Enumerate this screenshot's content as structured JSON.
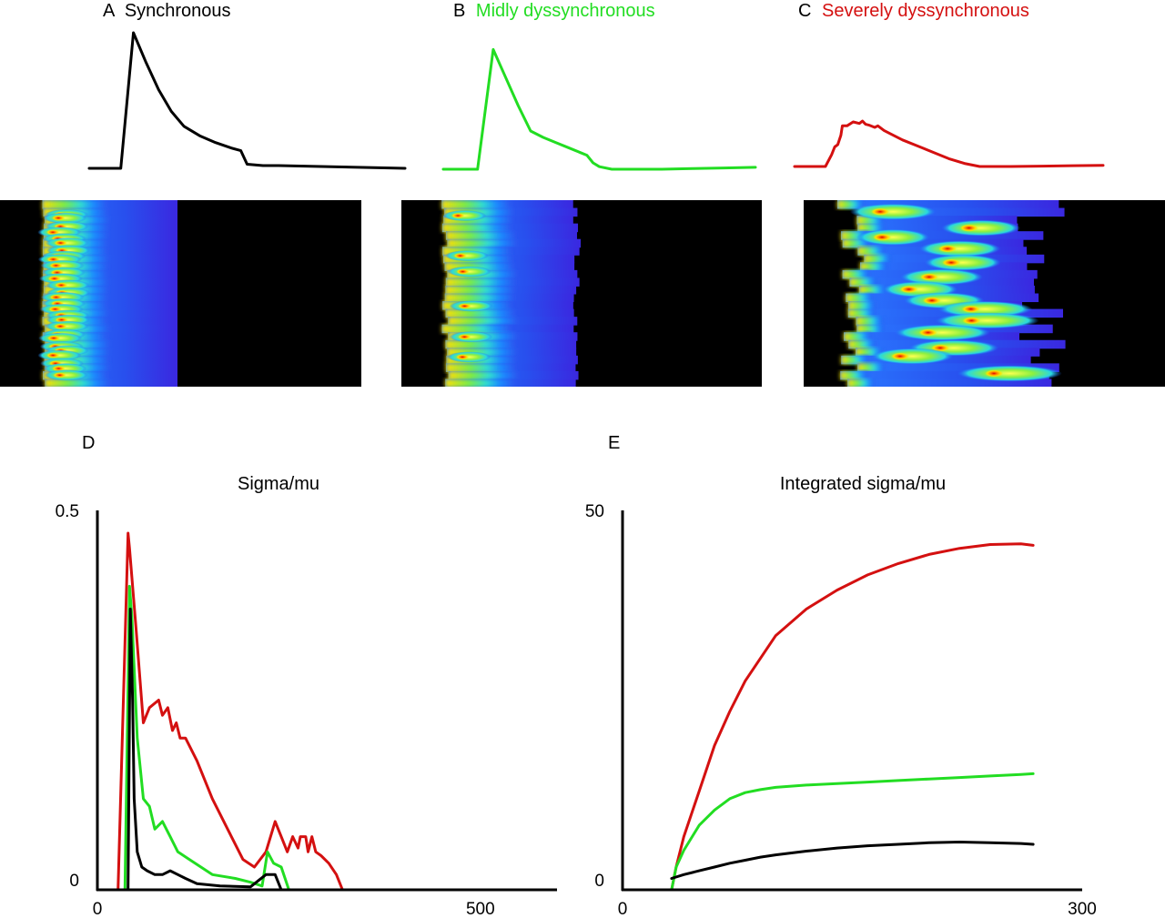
{
  "colors": {
    "synchronous": "#000000",
    "mild": "#22dd22",
    "severe": "#d41010",
    "heatmap_background": "#000000"
  },
  "panels": {
    "a": {
      "letter": "A",
      "title": "Synchronous"
    },
    "b": {
      "letter": "B",
      "title": "Midly dyssynchronous"
    },
    "c": {
      "letter": "C",
      "title": "Severely dyssynchronous"
    },
    "d": {
      "letter": "D",
      "title": "Sigma/mu"
    },
    "e": {
      "letter": "E",
      "title": "Integrated sigma/mu"
    }
  },
  "chart_data": [
    {
      "id": "trace-a",
      "type": "line",
      "panel": "A",
      "title": "Synchronous",
      "color": "#000000",
      "x": [
        0,
        10,
        14,
        18,
        22,
        26,
        30,
        35,
        40,
        45,
        48,
        50,
        55,
        60,
        70,
        80,
        90,
        100
      ],
      "y": [
        0,
        0,
        1.0,
        0.78,
        0.58,
        0.42,
        0.31,
        0.24,
        0.19,
        0.15,
        0.13,
        0.03,
        0.02,
        0.02,
        0.015,
        0.01,
        0.005,
        0.0
      ]
    },
    {
      "id": "trace-b",
      "type": "line",
      "panel": "B",
      "title": "Midly dyssynchronous",
      "color": "#22dd22",
      "x": [
        0,
        11,
        16,
        20,
        24,
        28,
        32,
        36,
        40,
        44,
        46,
        48,
        50,
        54,
        60,
        70,
        80,
        90,
        100
      ],
      "y": [
        0,
        0,
        0.94,
        0.72,
        0.5,
        0.3,
        0.25,
        0.21,
        0.17,
        0.13,
        0.11,
        0.05,
        0.02,
        0.0,
        0.0,
        0.0,
        0.005,
        0.01,
        0.015
      ]
    },
    {
      "id": "trace-c",
      "type": "line",
      "panel": "C",
      "title": "Severely dyssynchronous",
      "color": "#d41010",
      "x": [
        0,
        10,
        12,
        13,
        14,
        15,
        15.5,
        17,
        19,
        21,
        22,
        23,
        24,
        26,
        27,
        29,
        31,
        35,
        40,
        45,
        50,
        55,
        60,
        70,
        80,
        90,
        100
      ],
      "y": [
        0,
        0,
        0.15,
        0.25,
        0.28,
        0.4,
        0.52,
        0.52,
        0.57,
        0.55,
        0.58,
        0.54,
        0.53,
        0.5,
        0.52,
        0.46,
        0.42,
        0.34,
        0.26,
        0.18,
        0.1,
        0.04,
        0.0,
        0.0,
        0.005,
        0.01,
        0.015
      ]
    },
    {
      "id": "heatmap-a",
      "type": "heatmap",
      "panel": "A",
      "colorscale": "jet on black",
      "wavefront_jitter": 0.1,
      "red_foci": 28,
      "red_tail_amplitude": 0.0,
      "blue_tail_extent": 0.37,
      "blue_tail_jitter": 0.0
    },
    {
      "id": "heatmap-b",
      "type": "heatmap",
      "panel": "B",
      "colorscale": "jet on black",
      "wavefront_jitter": 0.25,
      "red_foci": 6,
      "red_tail_amplitude": 0.15,
      "blue_tail_extent": 0.38,
      "blue_tail_jitter": 0.15
    },
    {
      "id": "heatmap-c",
      "type": "heatmap",
      "panel": "C",
      "colorscale": "jet on black",
      "wavefront_jitter": 1.0,
      "red_foci": 14,
      "red_tail_amplitude": 1.0,
      "blue_tail_extent": 0.55,
      "blue_tail_jitter": 1.0
    },
    {
      "id": "panel-d",
      "type": "line",
      "panel": "D",
      "title": "Sigma/mu",
      "xlim": [
        0,
        600
      ],
      "ylim": [
        0,
        0.5
      ],
      "x_tick_labels": [
        "0",
        "500"
      ],
      "y_tick_labels": [
        "0",
        "0.5"
      ],
      "series": [
        {
          "key": "severe",
          "color": "#d41010",
          "x": [
            27,
            40,
            42,
            50,
            60,
            68,
            80,
            85,
            92,
            98,
            103,
            108,
            115,
            130,
            150,
            170,
            190,
            205,
            220,
            232,
            240,
            248,
            255,
            262,
            265,
            272,
            275,
            280,
            285,
            292,
            302,
            312,
            320
          ],
          "y": [
            0,
            0.47,
            0.45,
            0.35,
            0.22,
            0.24,
            0.25,
            0.23,
            0.24,
            0.21,
            0.22,
            0.2,
            0.2,
            0.17,
            0.12,
            0.08,
            0.04,
            0.03,
            0.05,
            0.09,
            0.07,
            0.05,
            0.07,
            0.055,
            0.07,
            0.07,
            0.05,
            0.07,
            0.05,
            0.045,
            0.035,
            0.02,
            0.0
          ]
        },
        {
          "key": "mild",
          "color": "#22dd22",
          "x": [
            36,
            42,
            45,
            52,
            60,
            68,
            75,
            85,
            95,
            105,
            120,
            150,
            180,
            200,
            215,
            222,
            230,
            240,
            250
          ],
          "y": [
            0,
            0.4,
            0.36,
            0.2,
            0.12,
            0.11,
            0.08,
            0.09,
            0.07,
            0.05,
            0.04,
            0.02,
            0.015,
            0.01,
            0.005,
            0.05,
            0.035,
            0.03,
            0.0
          ]
        },
        {
          "key": "sync",
          "color": "#000000",
          "x": [
            40,
            43,
            46,
            48,
            52,
            58,
            65,
            75,
            85,
            95,
            105,
            115,
            130,
            160,
            200,
            220,
            232,
            240
          ],
          "y": [
            0,
            0.37,
            0.25,
            0.12,
            0.05,
            0.03,
            0.025,
            0.02,
            0.02,
            0.025,
            0.02,
            0.015,
            0.008,
            0.005,
            0.004,
            0.02,
            0.02,
            0.0
          ]
        }
      ]
    },
    {
      "id": "panel-e",
      "type": "line",
      "panel": "E",
      "title": "Integrated sigma/mu",
      "xlim": [
        0,
        300
      ],
      "ylim": [
        0,
        50
      ],
      "x_tick_labels": [
        "0",
        "300"
      ],
      "y_tick_labels": [
        "0",
        "50"
      ],
      "series": [
        {
          "key": "severe",
          "color": "#d41010",
          "x": [
            32,
            35,
            40,
            50,
            60,
            70,
            80,
            90,
            100,
            120,
            140,
            160,
            180,
            200,
            220,
            240,
            260,
            268
          ],
          "y": [
            0,
            3,
            7,
            13,
            19,
            23.5,
            27.5,
            30.5,
            33.5,
            37,
            39.5,
            41.5,
            43,
            44.2,
            45,
            45.5,
            45.6,
            45.4
          ]
        },
        {
          "key": "mild",
          "color": "#22dd22",
          "x": [
            32,
            35,
            40,
            50,
            60,
            70,
            80,
            90,
            100,
            120,
            140,
            160,
            180,
            200,
            220,
            240,
            260,
            268
          ],
          "y": [
            0,
            3,
            5.2,
            8.5,
            10.5,
            12,
            12.8,
            13.2,
            13.5,
            13.8,
            14.0,
            14.2,
            14.4,
            14.6,
            14.8,
            15.0,
            15.2,
            15.3
          ]
        },
        {
          "key": "sync",
          "color": "#000000",
          "x": [
            32,
            40,
            50,
            60,
            70,
            80,
            90,
            100,
            120,
            140,
            160,
            180,
            200,
            220,
            240,
            260,
            268
          ],
          "y": [
            1.5,
            2.0,
            2.5,
            3.0,
            3.5,
            3.9,
            4.3,
            4.6,
            5.1,
            5.5,
            5.8,
            6.0,
            6.2,
            6.3,
            6.2,
            6.1,
            6.0
          ]
        }
      ]
    }
  ]
}
